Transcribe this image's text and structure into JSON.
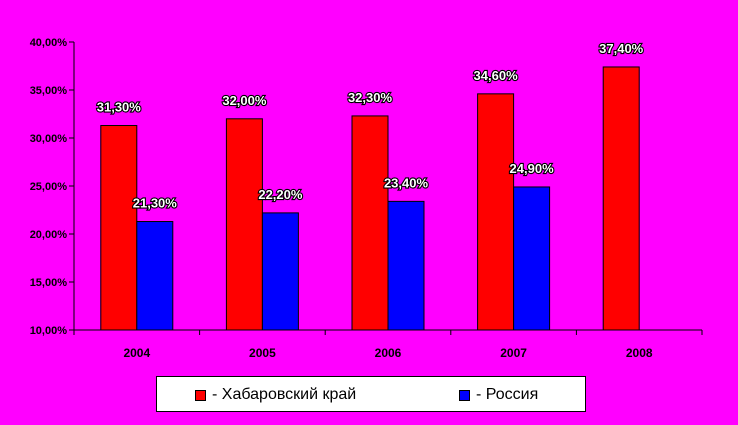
{
  "chart_data": {
    "type": "bar",
    "categories": [
      "2004",
      "2005",
      "2006",
      "2007",
      "2008"
    ],
    "series": [
      {
        "name": "- Хабаровский край",
        "color": "#ff0000",
        "values": [
          31.3,
          32.0,
          32.3,
          34.6,
          37.4
        ],
        "labels": [
          "31,30%",
          "32,00%",
          "32,30%",
          "34,60%",
          "37,40%"
        ]
      },
      {
        "name": "- Россия",
        "color": "#0000ff",
        "values": [
          21.3,
          22.2,
          23.4,
          24.9,
          null
        ],
        "labels": [
          "21,30%",
          "22,20%",
          "23,40%",
          "24,90%",
          ""
        ]
      }
    ],
    "ylim": [
      10,
      40
    ],
    "yticks": [
      10,
      15,
      20,
      25,
      30,
      35,
      40
    ],
    "ytick_labels": [
      "10,00%",
      "15,00%",
      "20,00%",
      "25,00%",
      "30,00%",
      "35,00%",
      "40,00%"
    ],
    "grid": false,
    "legend_position": "bottom"
  }
}
